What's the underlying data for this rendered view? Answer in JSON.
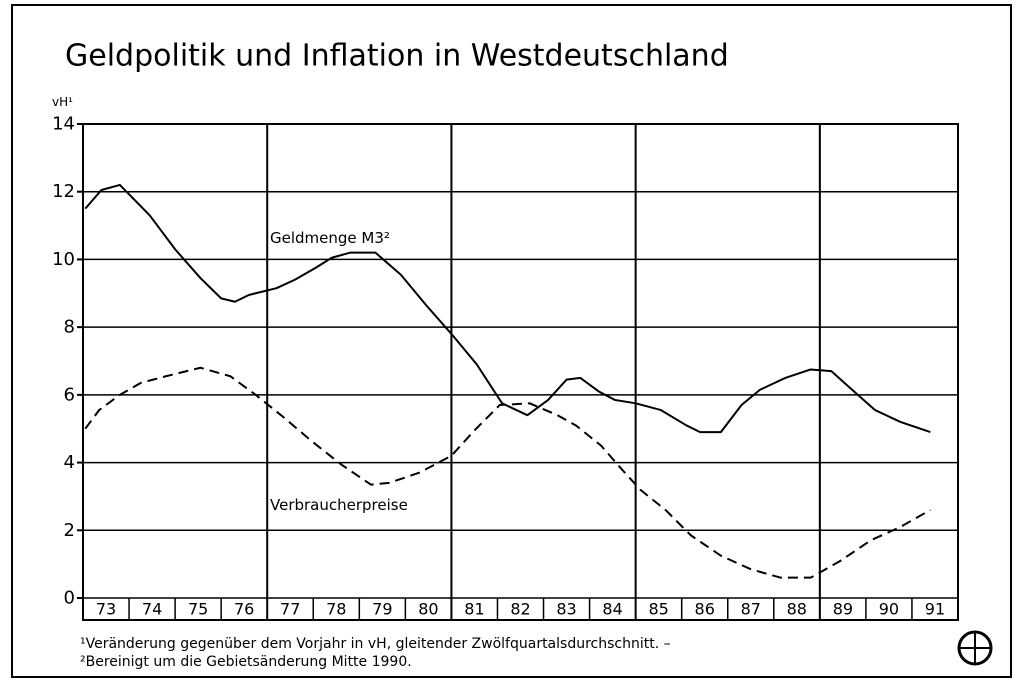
{
  "chart_data": {
    "type": "line",
    "title": "Geldpolitik und Inflation in Westdeutschland",
    "y_label": "vH¹",
    "categories": [
      "73",
      "74",
      "75",
      "76",
      "77",
      "78",
      "79",
      "80",
      "81",
      "82",
      "83",
      "84",
      "85",
      "86",
      "87",
      "88",
      "89",
      "90",
      "91"
    ],
    "xlim": [
      73,
      92
    ],
    "ylim": [
      0,
      14
    ],
    "yticks": [
      0,
      2,
      4,
      6,
      8,
      10,
      12,
      14
    ],
    "grid": true,
    "series": [
      {
        "name": "Geldmenge M3²",
        "color": "#000000",
        "style": "solid",
        "x": [
          73.05,
          73.4,
          73.8,
          74.45,
          75.0,
          75.55,
          76.0,
          76.3,
          76.6,
          77.2,
          77.6,
          78.05,
          78.4,
          78.8,
          79.35,
          79.9,
          80.45,
          81.0,
          81.55,
          82.1,
          82.65,
          83.1,
          83.5,
          83.8,
          84.2,
          84.55,
          85.0,
          85.55,
          86.1,
          86.4,
          86.85,
          87.3,
          87.7,
          88.25,
          88.8,
          89.25,
          89.7,
          90.2,
          90.75,
          91.4
        ],
        "values": [
          11.5,
          12.05,
          12.2,
          11.3,
          10.3,
          9.45,
          8.85,
          8.75,
          8.95,
          9.15,
          9.4,
          9.75,
          10.05,
          10.2,
          10.2,
          9.55,
          8.65,
          7.8,
          6.9,
          5.75,
          5.4,
          5.85,
          6.45,
          6.5,
          6.1,
          5.85,
          5.75,
          5.55,
          5.1,
          4.9,
          4.9,
          5.7,
          6.15,
          6.5,
          6.75,
          6.7,
          6.15,
          5.55,
          5.2,
          4.9
        ]
      },
      {
        "name": "Verbraucherpreise",
        "color": "#000000",
        "style": "dashed",
        "x": [
          73.05,
          73.35,
          73.8,
          74.25,
          74.8,
          75.55,
          76.2,
          76.75,
          77.3,
          77.95,
          78.6,
          79.25,
          79.65,
          80.3,
          81.0,
          81.5,
          82.05,
          82.7,
          83.3,
          83.7,
          84.25,
          84.7,
          85.1,
          85.65,
          86.2,
          86.85,
          87.5,
          88.15,
          88.8,
          89.45,
          90.1,
          90.75,
          91.4
        ],
        "values": [
          5.0,
          5.55,
          6.0,
          6.35,
          6.55,
          6.8,
          6.55,
          6.0,
          5.4,
          4.65,
          3.95,
          3.35,
          3.4,
          3.7,
          4.2,
          4.95,
          5.7,
          5.75,
          5.4,
          5.1,
          4.5,
          3.8,
          3.2,
          2.6,
          1.85,
          1.25,
          0.85,
          0.6,
          0.6,
          1.1,
          1.7,
          2.1,
          2.6
        ]
      }
    ],
    "footnotes": [
      "¹Veränderung gegenüber dem Vorjahr in vH, gleitender Zwölfquartalsdurchschnitt. –",
      "²Bereinigt um die Gebietsänderung Mitte 1990."
    ]
  }
}
